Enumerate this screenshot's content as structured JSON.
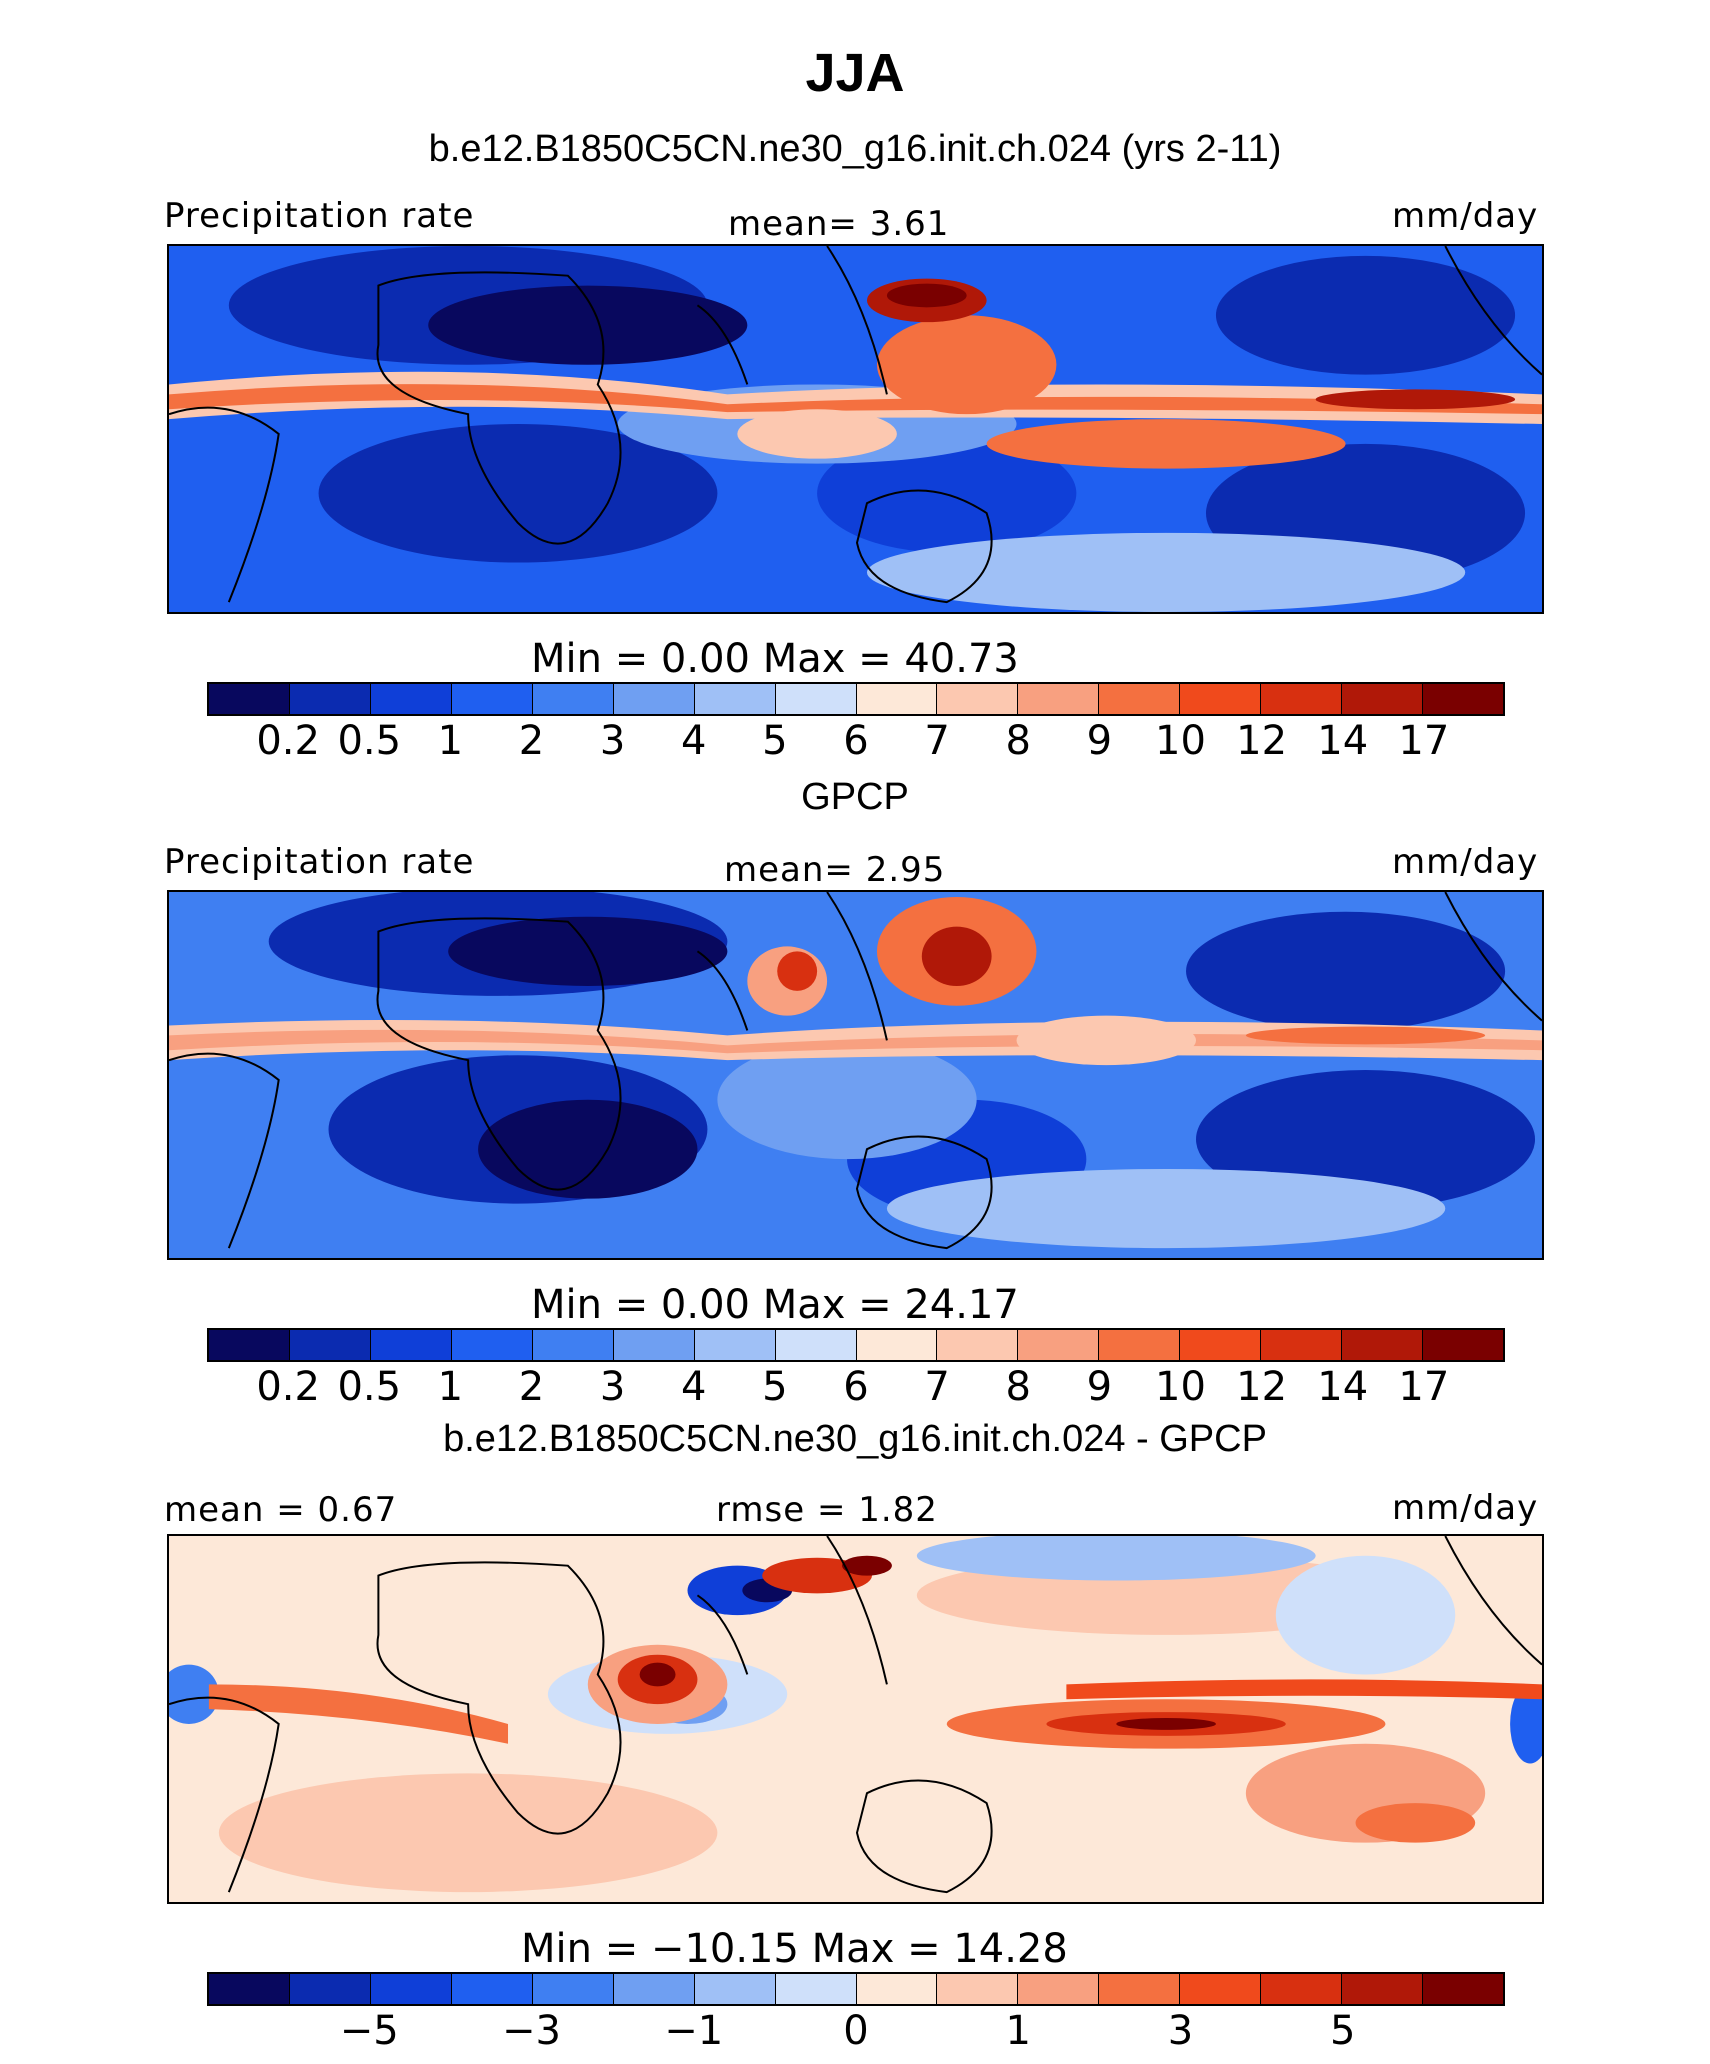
{
  "title": "JJA",
  "panel1": {
    "subtitle": "b.e12.B1850C5CN.ne30_g16.init.ch.024 (yrs 2-11)",
    "left_label": "Precipitation rate",
    "center_label": "mean=    3.61",
    "units": "mm/day",
    "minmax": "Min  =     0.00  Max  =    40.73",
    "ticks": [
      "0.2",
      "0.5",
      "1",
      "2",
      "3",
      "4",
      "5",
      "6",
      "7",
      "8",
      "9",
      "10",
      "12",
      "14",
      "17"
    ]
  },
  "panel2": {
    "subtitle": "GPCP",
    "left_label": "Precipitation rate",
    "center_label": "mean=    2.95",
    "units": "mm/day",
    "minmax": "Min  =     0.00  Max  =    24.17",
    "ticks": [
      "0.2",
      "0.5",
      "1",
      "2",
      "3",
      "4",
      "5",
      "6",
      "7",
      "8",
      "9",
      "10",
      "12",
      "14",
      "17"
    ]
  },
  "panel3": {
    "subtitle": "b.e12.B1850C5CN.ne30_g16.init.ch.024 - GPCP",
    "left_label": "mean  =    0.67",
    "center_label": "rmse  =     1.82",
    "units": "mm/day",
    "minmax": "Min  = −10.15  Max  =    14.28",
    "ticks": [
      "−5",
      "−3",
      "−1",
      "0",
      "1",
      "3",
      "5"
    ]
  },
  "colors": [
    "#08085e",
    "#0b2bb0",
    "#0f3fd8",
    "#1f5ff0",
    "#3f7ff2",
    "#6f9ff2",
    "#9fc0f6",
    "#cfe0fa",
    "#fde8d8",
    "#fcc8b0",
    "#f8a080",
    "#f47040",
    "#f04a1c",
    "#d83010",
    "#b01808",
    "#7a0000"
  ]
}
